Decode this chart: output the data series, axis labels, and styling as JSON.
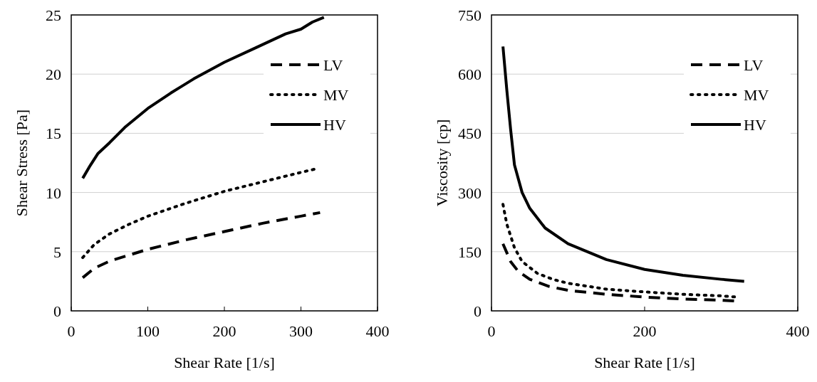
{
  "chart_data": [
    {
      "type": "line",
      "xlabel": "Shear Rate [1/s]",
      "ylabel": "Shear Stress [Pa]",
      "xlim": [
        0,
        400
      ],
      "xticks": [
        0,
        100,
        200,
        300,
        400
      ],
      "ylim": [
        0,
        25
      ],
      "yticks": [
        0,
        5,
        10,
        15,
        20,
        25
      ],
      "grid": "y",
      "legend": "top right",
      "series": [
        {
          "name": "LV",
          "color": "#000000",
          "line_style": "dashed",
          "x": [
            15,
            30,
            50,
            75,
            100,
            150,
            200,
            250,
            300,
            325
          ],
          "values": [
            2.8,
            3.6,
            4.2,
            4.7,
            5.2,
            6.0,
            6.7,
            7.4,
            8.0,
            8.3
          ]
        },
        {
          "name": "MV",
          "color": "#000000",
          "line_style": "dotted",
          "x": [
            15,
            30,
            50,
            75,
            100,
            150,
            200,
            250,
            300,
            320
          ],
          "values": [
            4.5,
            5.6,
            6.5,
            7.3,
            8.0,
            9.1,
            10.1,
            10.9,
            11.7,
            12.0
          ]
        },
        {
          "name": "HV",
          "color": "#000000",
          "line_style": "solid",
          "x": [
            15,
            25,
            35,
            50,
            70,
            100,
            130,
            160,
            200,
            240,
            280,
            300,
            315,
            330
          ],
          "values": [
            11.2,
            12.3,
            13.3,
            14.2,
            15.5,
            17.1,
            18.4,
            19.6,
            21.0,
            22.2,
            23.4,
            23.8,
            24.4,
            24.8
          ]
        }
      ]
    },
    {
      "type": "line",
      "xlabel": "Shear Rate [1/s]",
      "ylabel": "Viscosity [cp]",
      "xlim": [
        0,
        400
      ],
      "xticks": [
        0,
        200,
        400
      ],
      "ylim": [
        0,
        750
      ],
      "yticks": [
        0,
        150,
        300,
        450,
        600,
        750
      ],
      "grid": "y",
      "legend": "top right",
      "series": [
        {
          "name": "LV",
          "color": "#000000",
          "line_style": "dashed",
          "x": [
            15,
            25,
            35,
            50,
            75,
            100,
            150,
            200,
            250,
            300,
            320
          ],
          "values": [
            170,
            125,
            100,
            80,
            62,
            52,
            42,
            35,
            30,
            27,
            25
          ]
        },
        {
          "name": "MV",
          "color": "#000000",
          "line_style": "dotted",
          "x": [
            15,
            20,
            30,
            40,
            60,
            80,
            100,
            150,
            200,
            250,
            300,
            320
          ],
          "values": [
            270,
            220,
            160,
            125,
            95,
            80,
            70,
            55,
            48,
            42,
            38,
            35
          ]
        },
        {
          "name": "HV",
          "color": "#000000",
          "line_style": "solid",
          "x": [
            15,
            20,
            25,
            30,
            40,
            50,
            70,
            100,
            150,
            200,
            250,
            300,
            330
          ],
          "values": [
            670,
            560,
            460,
            370,
            300,
            260,
            210,
            170,
            130,
            105,
            90,
            80,
            75
          ]
        }
      ]
    }
  ]
}
